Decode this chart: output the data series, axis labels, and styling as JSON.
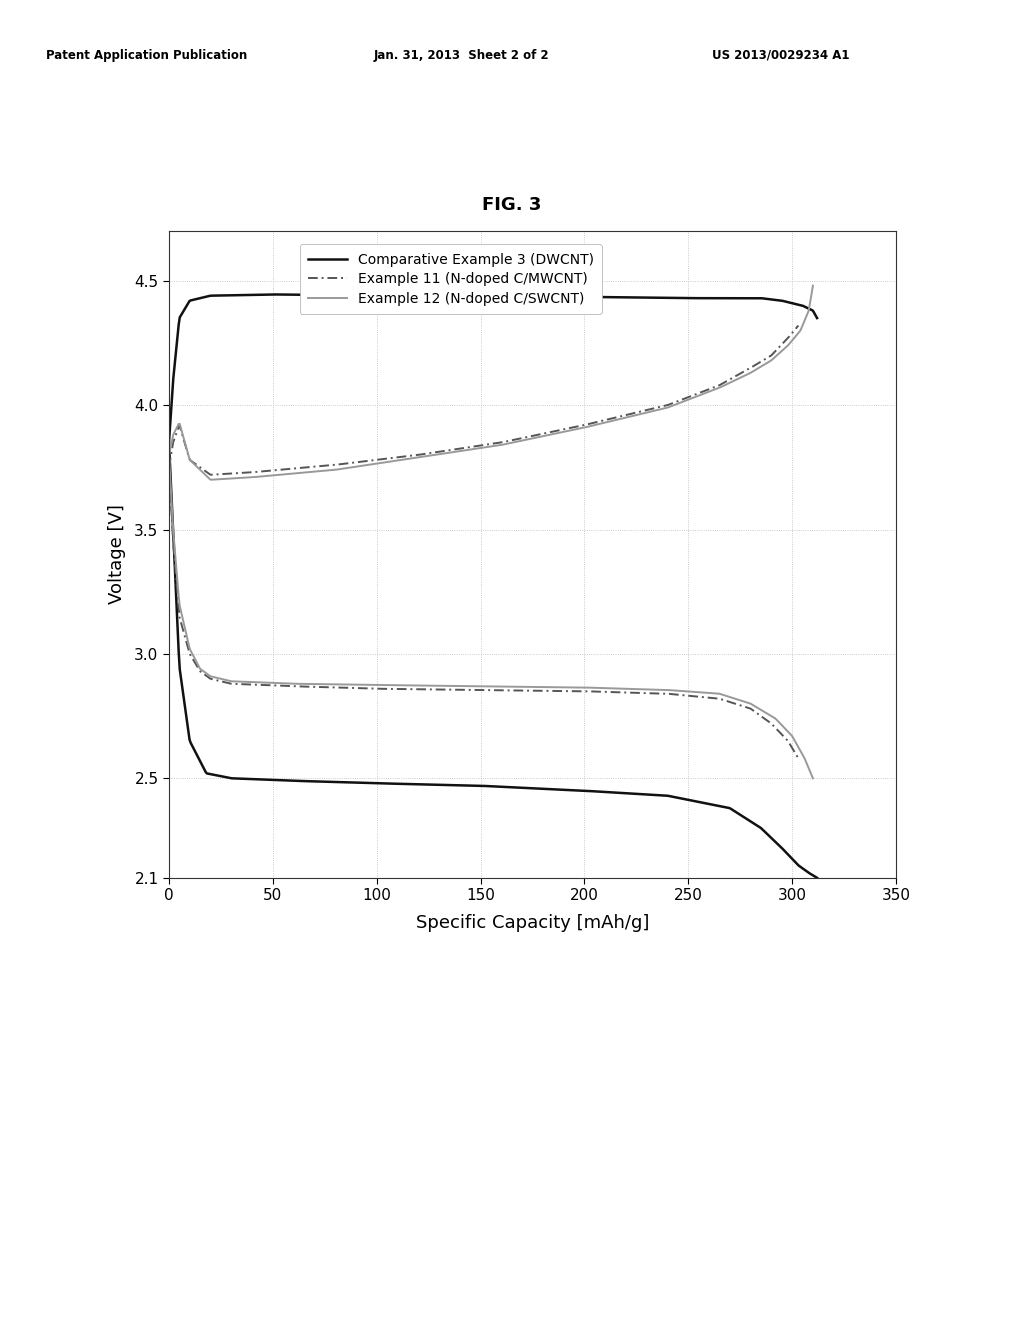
{
  "title": "FIG. 3",
  "xlabel": "Specific Capacity [mAh/g]",
  "ylabel": "Voltage [V]",
  "xlim": [
    0,
    350
  ],
  "ylim": [
    2.1,
    4.7
  ],
  "xticks": [
    0,
    50,
    100,
    150,
    200,
    250,
    300,
    350
  ],
  "yticks": [
    2.1,
    2.5,
    3.0,
    3.5,
    4.0,
    4.5
  ],
  "header_left": "Patent Application Publication",
  "header_center": "Jan. 31, 2013  Sheet 2 of 2",
  "header_right": "US 2013/0029234 A1",
  "legend_labels": [
    "Comparative Example 3 (DWCNT)",
    "Example 11 (N-doped C/MWCNT)",
    "Example 12 (N-doped C/SWCNT)"
  ],
  "line_colors": [
    "#111111",
    "#555555",
    "#999999"
  ],
  "background_color": "#ffffff",
  "grid_color": "#bbbbbb"
}
